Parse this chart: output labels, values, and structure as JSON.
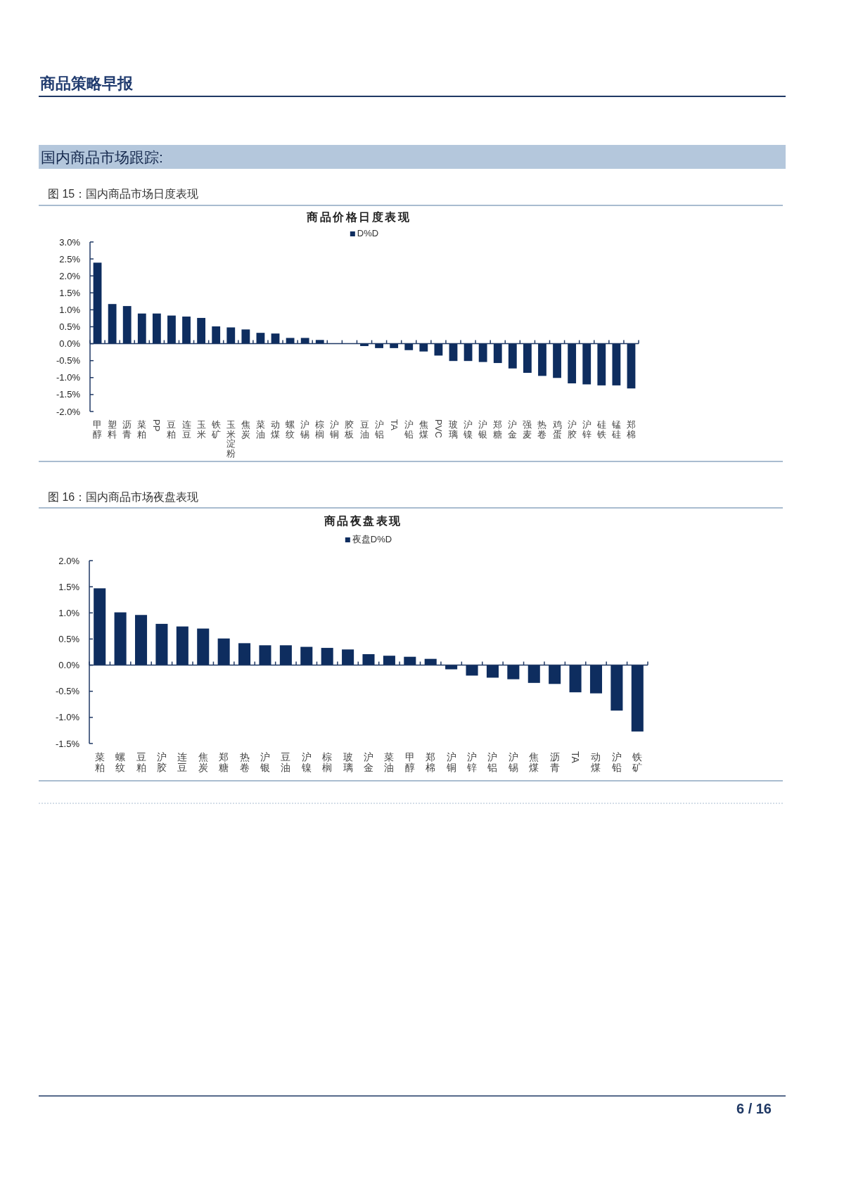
{
  "chart_data": [
    {
      "type": "bar",
      "title": "商品价格日度表现",
      "annotations": [
        "商品策略早报",
        "国内商品市场跟踪:",
        "图 15：国内商品市场日度表现"
      ],
      "categories": [
        "甲醇",
        "塑料",
        "沥青",
        "菜粕",
        "PP",
        "豆粕",
        "连豆",
        "玉米",
        "铁矿",
        "玉米淀粉",
        "焦炭",
        "菜油",
        "动煤",
        "螺纹",
        "沪锡",
        "棕榈",
        "沪铜",
        "胶板",
        "豆油",
        "沪铝",
        "TA",
        "沪铅",
        "焦煤",
        "PVC",
        "玻璃",
        "沪镍",
        "沪银",
        "郑糖",
        "沪金",
        "强麦",
        "热卷",
        "鸡蛋",
        "沪胶",
        "沪锌",
        "硅铁",
        "锰硅",
        "郑棉"
      ],
      "series": [
        {
          "name": "D%D",
          "color": "#0e2d5f",
          "values": [
            2.39,
            1.17,
            1.11,
            0.89,
            0.89,
            0.83,
            0.8,
            0.76,
            0.51,
            0.48,
            0.42,
            0.32,
            0.3,
            0.17,
            0.17,
            0.11,
            0,
            0,
            -0.07,
            -0.13,
            -0.13,
            -0.19,
            -0.23,
            -0.35,
            -0.51,
            -0.51,
            -0.54,
            -0.57,
            -0.73,
            -0.86,
            -0.95,
            -1.01,
            -1.17,
            -1.2,
            -1.23,
            -1.23,
            -1.32
          ]
        }
      ],
      "ylim": [
        -2,
        3
      ],
      "yticks": [
        {
          "value": 3,
          "label": "3.0%"
        },
        {
          "value": 2.5,
          "label": "2.5%"
        },
        {
          "value": 2,
          "label": "2.0%"
        },
        {
          "value": 1.5,
          "label": "1.5%"
        },
        {
          "value": 1,
          "label": "1.0%"
        },
        {
          "value": 0.5,
          "label": "0.5%"
        },
        {
          "value": 0,
          "label": "0.0%"
        },
        {
          "value": -0.5,
          "label": "-0.5%"
        },
        {
          "value": -1,
          "label": "-1.0%"
        },
        {
          "value": -1.5,
          "label": "-1.5%"
        },
        {
          "value": -2,
          "label": "-2.0%"
        }
      ],
      "ref_lines": [
        {
          "axis": "y",
          "value": 0,
          "color": "#1f3864"
        }
      ],
      "legend": "top"
    },
    {
      "type": "bar",
      "title": "商品夜盘表现",
      "annotations": [
        "图 16：国内商品市场夜盘表现",
        "6 / 16"
      ],
      "categories": [
        "菜粕",
        "螺纹",
        "豆粕",
        "沪胶",
        "连豆",
        "焦炭",
        "郑糖",
        "热卷",
        "沪银",
        "豆油",
        "沪镍",
        "棕榈",
        "玻璃",
        "沪金",
        "菜油",
        "甲醇",
        "郑棉",
        "沪铜",
        "沪锌",
        "沪铝",
        "沪锡",
        "焦煤",
        "沥青",
        "TA",
        "动煤",
        "沪铅",
        "铁矿"
      ],
      "series": [
        {
          "name": "夜盘D%D",
          "color": "#0e2d5f",
          "values": [
            1.47,
            1.01,
            0.96,
            0.79,
            0.74,
            0.7,
            0.51,
            0.42,
            0.38,
            0.38,
            0.35,
            0.33,
            0.3,
            0.21,
            0.18,
            0.16,
            0.12,
            -0.08,
            -0.2,
            -0.24,
            -0.27,
            -0.34,
            -0.36,
            -0.52,
            -0.54,
            -0.87,
            -1.27
          ]
        }
      ],
      "ylim": [
        -1.5,
        2
      ],
      "yticks": [
        {
          "value": 2,
          "label": "2.0%"
        },
        {
          "value": 1.5,
          "label": "1.5%"
        },
        {
          "value": 1,
          "label": "1.0%"
        },
        {
          "value": 0.5,
          "label": "0.5%"
        },
        {
          "value": 0,
          "label": "0.0%"
        },
        {
          "value": -0.5,
          "label": "-0.5%"
        },
        {
          "value": -1,
          "label": "-1.0%"
        },
        {
          "value": -1.5,
          "label": "-1.5%"
        }
      ],
      "ref_lines": [
        {
          "axis": "y",
          "value": 0,
          "color": "#1f3864"
        }
      ],
      "legend": "top"
    }
  ]
}
